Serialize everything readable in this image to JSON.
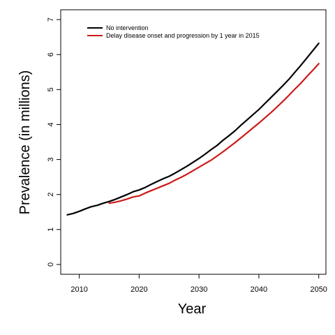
{
  "chart_data": {
    "type": "line",
    "xlabel": "Year",
    "ylabel": "Prevalence (in millions)",
    "xlim": [
      2006.9,
      2051.2
    ],
    "ylim": [
      -0.28,
      7.28
    ],
    "xticks": [
      2010,
      2020,
      2030,
      2040,
      2050
    ],
    "yticks": [
      0,
      1,
      2,
      3,
      4,
      5,
      6,
      7
    ],
    "grid": false,
    "legend_position": "top-left",
    "series": [
      {
        "name": "No intervention",
        "color": "#000000",
        "points": [
          [
            2008,
            1.42
          ],
          [
            2009,
            1.46
          ],
          [
            2010,
            1.52
          ],
          [
            2011,
            1.59
          ],
          [
            2012,
            1.65
          ],
          [
            2013,
            1.69
          ],
          [
            2014,
            1.75
          ],
          [
            2015,
            1.8
          ],
          [
            2016,
            1.86
          ],
          [
            2017,
            1.93
          ],
          [
            2018,
            2.0
          ],
          [
            2019,
            2.08
          ],
          [
            2020,
            2.13
          ],
          [
            2021,
            2.2
          ],
          [
            2022,
            2.29
          ],
          [
            2023,
            2.37
          ],
          [
            2024,
            2.45
          ],
          [
            2025,
            2.52
          ],
          [
            2026,
            2.61
          ],
          [
            2027,
            2.71
          ],
          [
            2028,
            2.81
          ],
          [
            2029,
            2.92
          ],
          [
            2030,
            3.03
          ],
          [
            2031,
            3.15
          ],
          [
            2032,
            3.28
          ],
          [
            2033,
            3.4
          ],
          [
            2034,
            3.55
          ],
          [
            2035,
            3.68
          ],
          [
            2036,
            3.82
          ],
          [
            2037,
            3.98
          ],
          [
            2038,
            4.13
          ],
          [
            2039,
            4.28
          ],
          [
            2040,
            4.43
          ],
          [
            2041,
            4.6
          ],
          [
            2042,
            4.77
          ],
          [
            2043,
            4.94
          ],
          [
            2044,
            5.11
          ],
          [
            2045,
            5.29
          ],
          [
            2046,
            5.49
          ],
          [
            2047,
            5.69
          ],
          [
            2048,
            5.9
          ],
          [
            2049,
            6.11
          ],
          [
            2050,
            6.32
          ]
        ]
      },
      {
        "name": "Delay disease onset and progression by 1 year in 2015",
        "color": "#cc1a1a",
        "points": [
          [
            2015,
            1.75
          ],
          [
            2016,
            1.78
          ],
          [
            2017,
            1.82
          ],
          [
            2018,
            1.87
          ],
          [
            2019,
            1.93
          ],
          [
            2020,
            1.96
          ],
          [
            2021,
            2.04
          ],
          [
            2022,
            2.11
          ],
          [
            2023,
            2.18
          ],
          [
            2024,
            2.25
          ],
          [
            2025,
            2.32
          ],
          [
            2026,
            2.41
          ],
          [
            2027,
            2.49
          ],
          [
            2028,
            2.58
          ],
          [
            2029,
            2.68
          ],
          [
            2030,
            2.78
          ],
          [
            2031,
            2.88
          ],
          [
            2032,
            2.98
          ],
          [
            2033,
            3.1
          ],
          [
            2034,
            3.22
          ],
          [
            2035,
            3.35
          ],
          [
            2036,
            3.48
          ],
          [
            2037,
            3.62
          ],
          [
            2038,
            3.76
          ],
          [
            2039,
            3.9
          ],
          [
            2040,
            4.04
          ],
          [
            2041,
            4.19
          ],
          [
            2042,
            4.34
          ],
          [
            2043,
            4.5
          ],
          [
            2044,
            4.66
          ],
          [
            2045,
            4.83
          ],
          [
            2046,
            5.01
          ],
          [
            2047,
            5.18
          ],
          [
            2048,
            5.37
          ],
          [
            2049,
            5.55
          ],
          [
            2050,
            5.74
          ]
        ]
      }
    ]
  }
}
